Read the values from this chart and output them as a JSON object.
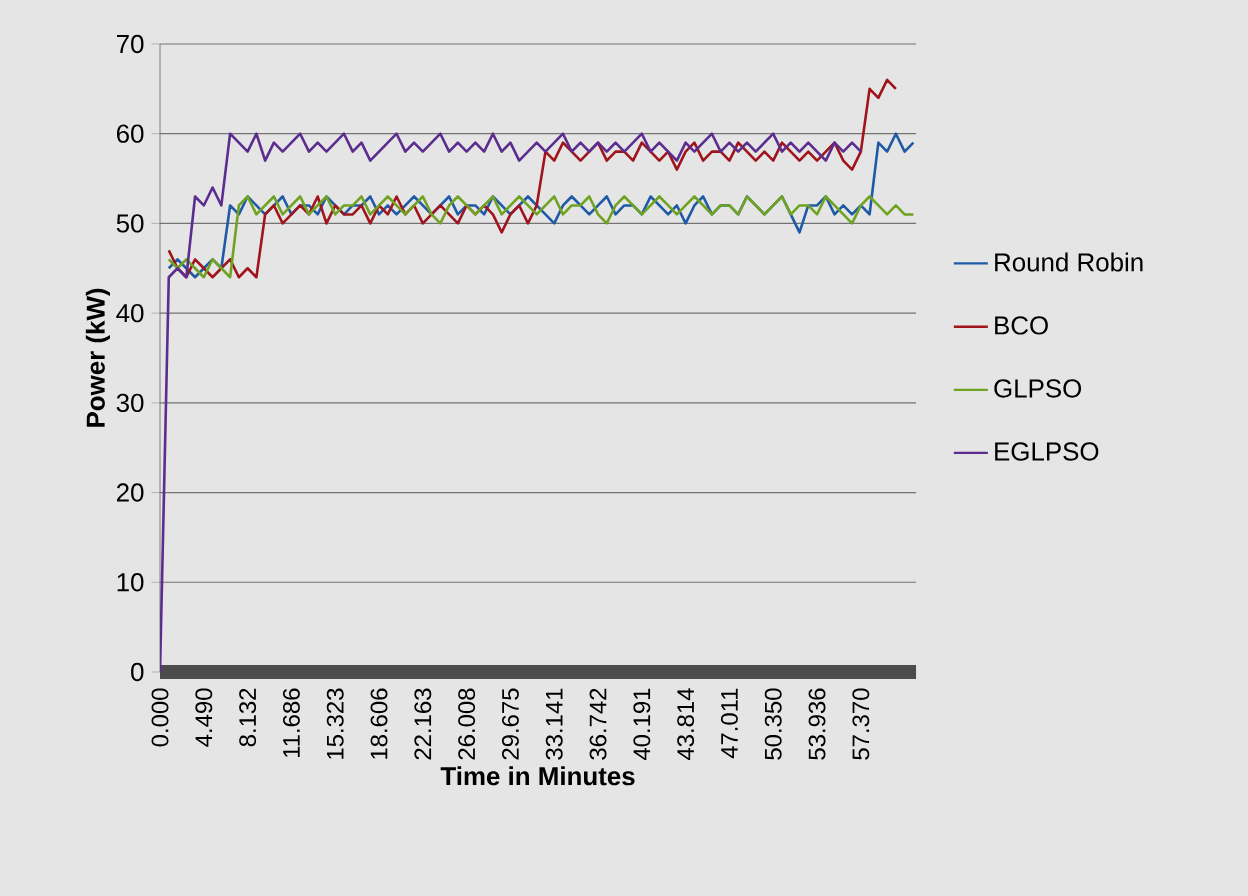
{
  "chart_data": {
    "type": "line",
    "xlabel": "Time in Minutes",
    "ylabel": "Power (kW)",
    "categories": [
      "0.000",
      null,
      null,
      null,
      null,
      "4.490",
      null,
      null,
      null,
      null,
      "8.132",
      null,
      null,
      null,
      null,
      "11.686",
      null,
      null,
      null,
      null,
      "15.323",
      null,
      null,
      null,
      null,
      "18.606",
      null,
      null,
      null,
      null,
      "22.163",
      null,
      null,
      null,
      null,
      "26.008",
      null,
      null,
      null,
      null,
      "29.675",
      null,
      null,
      null,
      null,
      "33.141",
      null,
      null,
      null,
      null,
      "36.742",
      null,
      null,
      null,
      null,
      "40.191",
      null,
      null,
      null,
      null,
      "43.814",
      null,
      null,
      null,
      null,
      "47.011",
      null,
      null,
      null,
      null,
      "50.350",
      null,
      null,
      null,
      null,
      "53.936",
      null,
      null,
      null,
      null,
      "57.370",
      null,
      null,
      null,
      null,
      null,
      null
    ],
    "series": [
      {
        "name": "Round Robin",
        "color": "#1f5aa6",
        "values": [
          null,
          45,
          46,
          45,
          44,
          45,
          46,
          45,
          52,
          51,
          53,
          52,
          51,
          52,
          53,
          51,
          52,
          52,
          51,
          53,
          52,
          51,
          52,
          52,
          53,
          51,
          52,
          51,
          52,
          53,
          52,
          51,
          52,
          53,
          51,
          52,
          52,
          51,
          53,
          52,
          51,
          52,
          53,
          52,
          51,
          50,
          52,
          53,
          52,
          51,
          52,
          53,
          51,
          52,
          52,
          51,
          53,
          52,
          51,
          52,
          50,
          52,
          53,
          51,
          52,
          52,
          51,
          53,
          52,
          51,
          52,
          53,
          51,
          49,
          52,
          52,
          53,
          51,
          52,
          51,
          52,
          51,
          59,
          58,
          60,
          58,
          59
        ]
      },
      {
        "name": "BCO",
        "color": "#a0141c",
        "values": [
          null,
          47,
          45,
          44,
          46,
          45,
          44,
          45,
          46,
          44,
          45,
          44,
          51,
          52,
          50,
          51,
          52,
          51,
          53,
          50,
          52,
          51,
          51,
          52,
          50,
          52,
          51,
          53,
          51,
          52,
          50,
          51,
          52,
          51,
          50,
          52,
          51,
          52,
          51,
          49,
          51,
          52,
          50,
          52,
          58,
          57,
          59,
          58,
          57,
          58,
          59,
          57,
          58,
          58,
          57,
          59,
          58,
          57,
          58,
          56,
          58,
          59,
          57,
          58,
          58,
          57,
          59,
          58,
          57,
          58,
          57,
          59,
          58,
          57,
          58,
          57,
          58,
          59,
          57,
          56,
          58,
          65,
          64,
          66,
          65,
          null,
          null
        ]
      },
      {
        "name": "GLPSO",
        "color": "#6fa321",
        "values": [
          null,
          46,
          45,
          46,
          45,
          44,
          46,
          45,
          44,
          52,
          53,
          51,
          52,
          53,
          51,
          52,
          53,
          51,
          52,
          53,
          51,
          52,
          52,
          53,
          51,
          52,
          53,
          52,
          51,
          52,
          53,
          51,
          50,
          52,
          53,
          52,
          51,
          52,
          53,
          51,
          52,
          53,
          52,
          51,
          52,
          53,
          51,
          52,
          52,
          53,
          51,
          50,
          52,
          53,
          52,
          51,
          52,
          53,
          52,
          51,
          52,
          53,
          52,
          51,
          52,
          52,
          51,
          53,
          52,
          51,
          52,
          53,
          51,
          52,
          52,
          51,
          53,
          52,
          51,
          50,
          52,
          53,
          52,
          51,
          52,
          51,
          51
        ]
      },
      {
        "name": "EGLPSO",
        "color": "#5b2d8e",
        "values": [
          0,
          44,
          45,
          44,
          53,
          52,
          54,
          52,
          60,
          59,
          58,
          60,
          57,
          59,
          58,
          59,
          60,
          58,
          59,
          58,
          59,
          60,
          58,
          59,
          57,
          58,
          59,
          60,
          58,
          59,
          58,
          59,
          60,
          58,
          59,
          58,
          59,
          58,
          60,
          58,
          59,
          57,
          58,
          59,
          58,
          59,
          60,
          58,
          59,
          58,
          59,
          58,
          59,
          58,
          59,
          60,
          58,
          59,
          58,
          57,
          59,
          58,
          59,
          60,
          58,
          59,
          58,
          59,
          58,
          59,
          60,
          58,
          59,
          58,
          59,
          58,
          57,
          59,
          58,
          59,
          58,
          null,
          null,
          null,
          null,
          null,
          null
        ]
      }
    ],
    "ylim": [
      0,
      70
    ],
    "yticks": [
      0,
      10,
      20,
      30,
      40,
      50,
      60,
      70
    ],
    "grid": "y",
    "legend": "right",
    "marker": "none",
    "line_style": "solid"
  }
}
